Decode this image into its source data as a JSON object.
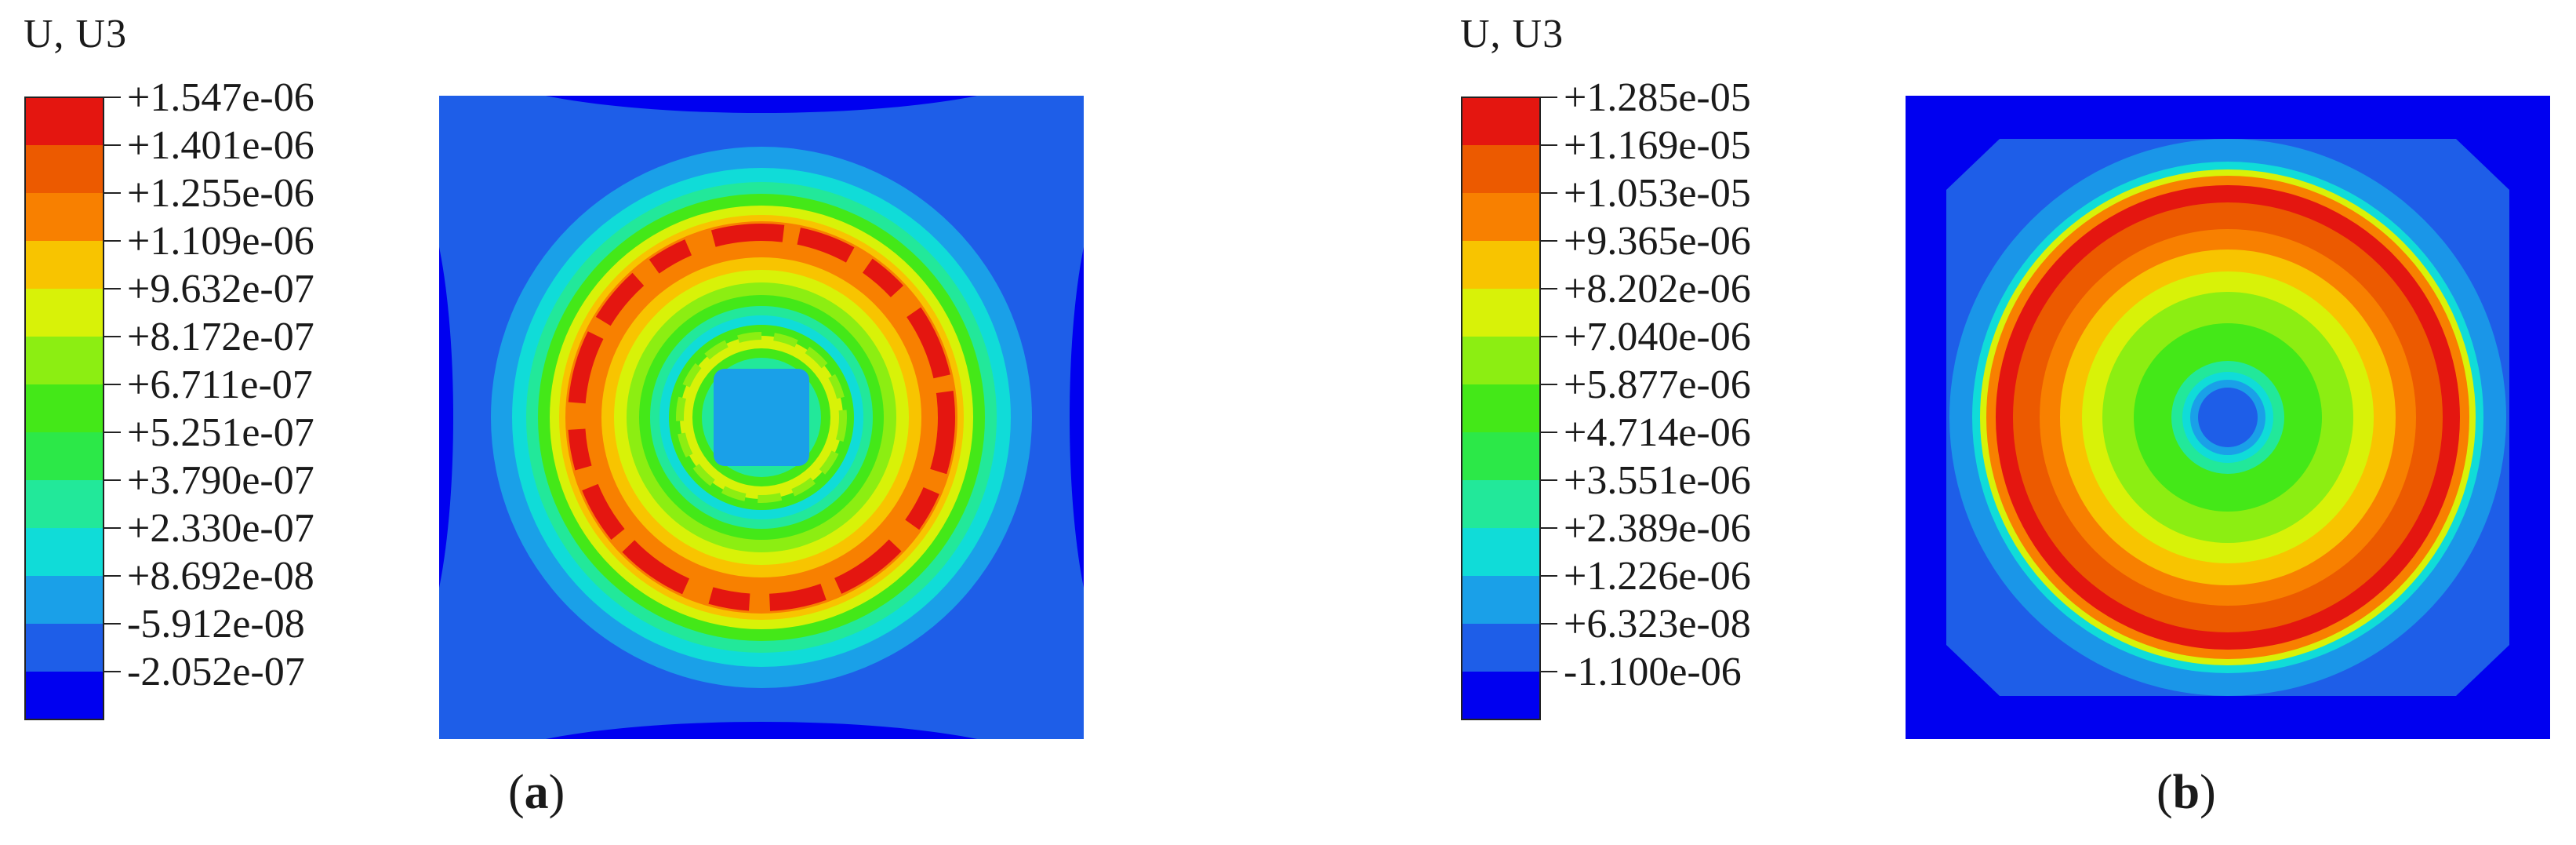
{
  "colors": {
    "bands": [
      "#0000f0",
      "#1e5ee8",
      "#1aa0e8",
      "#10dcd8",
      "#22e89a",
      "#2ce848",
      "#44e818",
      "#8cee12",
      "#d8f208",
      "#f8c400",
      "#f88000",
      "#ec5a00",
      "#e41610"
    ],
    "border": "#222222"
  },
  "panels": [
    {
      "id": "a",
      "legend_title": "U, U3",
      "ticks": [
        "+1.547e-06",
        "+1.401e-06",
        "+1.255e-06",
        "+1.109e-06",
        "+9.632e-07",
        "+8.172e-07",
        "+6.711e-07",
        "+5.251e-07",
        "+3.790e-07",
        "+2.330e-07",
        "+8.692e-08",
        "-5.912e-08",
        "-2.052e-07"
      ],
      "caption_open": "(",
      "caption_letter": "a",
      "caption_close": ")"
    },
    {
      "id": "b",
      "legend_title": "U, U3",
      "ticks": [
        "+1.285e-05",
        "+1.169e-05",
        "+1.053e-05",
        "+9.365e-06",
        "+8.202e-06",
        "+7.040e-06",
        "+5.877e-06",
        "+4.714e-06",
        "+3.551e-06",
        "+2.389e-06",
        "+1.226e-06",
        "+6.323e-08",
        "-1.100e-06"
      ],
      "caption_open": "(",
      "caption_letter": "b",
      "caption_close": ")"
    }
  ]
}
